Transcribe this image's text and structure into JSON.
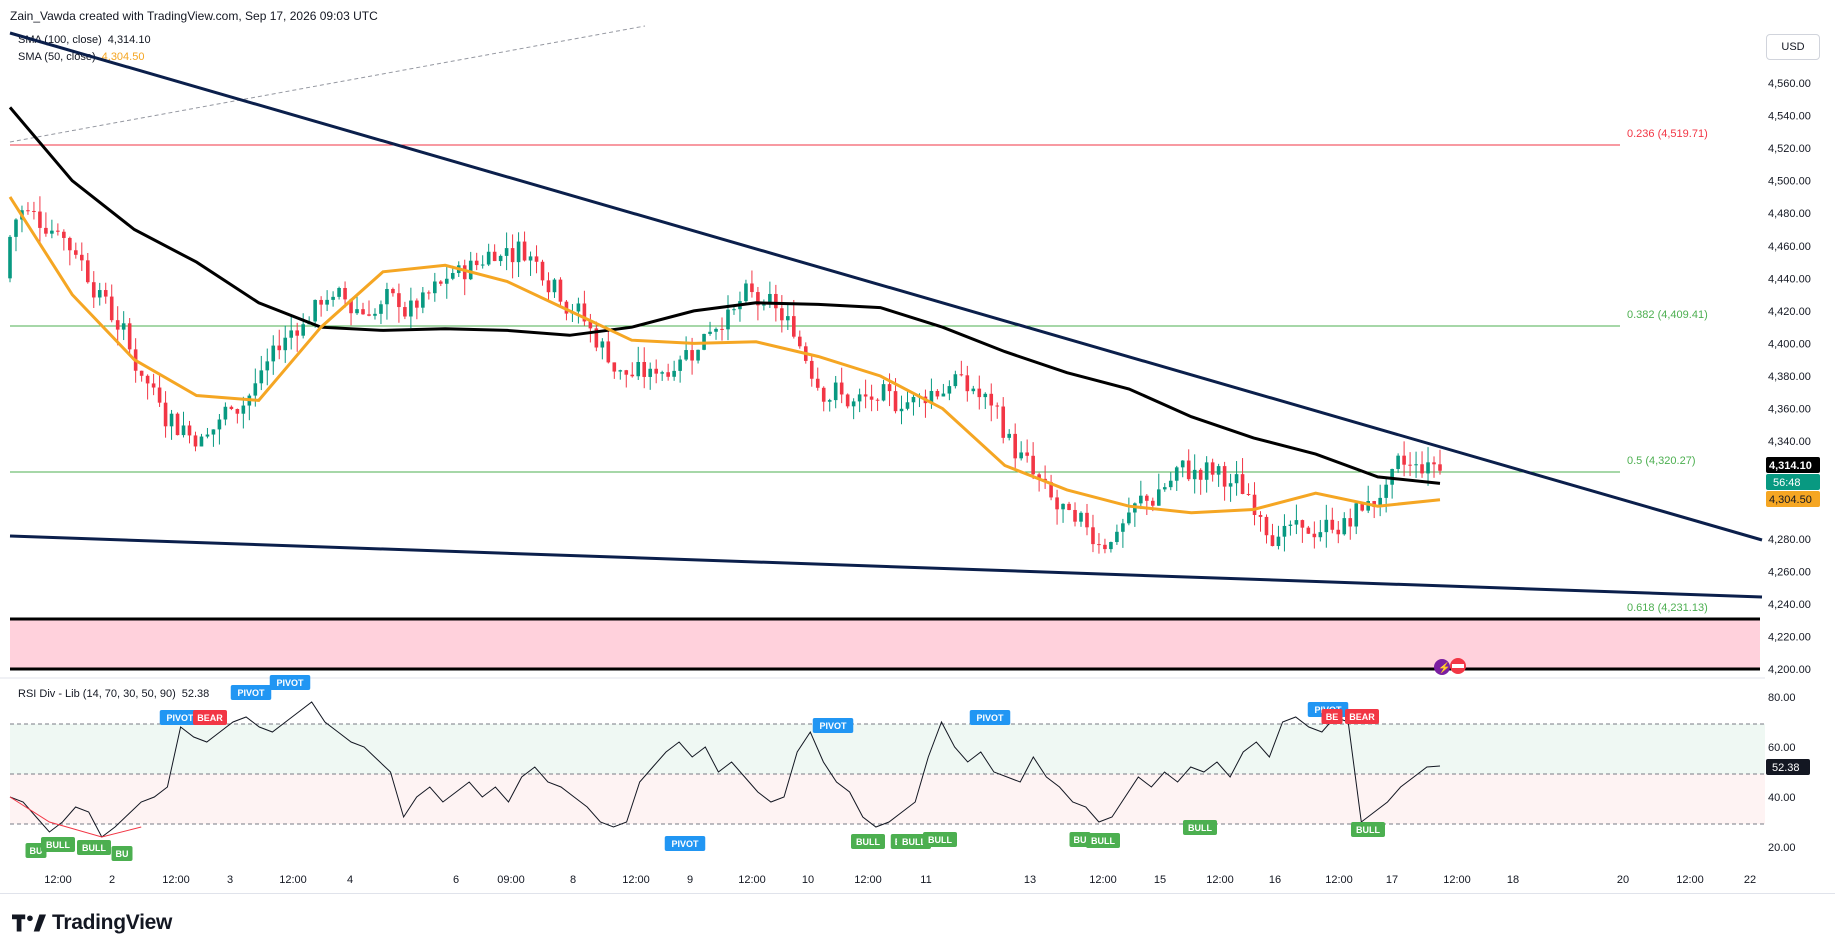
{
  "header": {
    "attribution": "Zain_Vawda created with TradingView.com, Sep 17, 2026 09:03 UTC"
  },
  "legend": [
    {
      "label": "SMA (100, close)",
      "value": "4,314.10",
      "color": "#000000"
    },
    {
      "label": "SMA (50, close)",
      "value": "4,304.50",
      "color": "#f5a623"
    }
  ],
  "currency_button": "USD",
  "price_axis_labels": [
    "4,560.00",
    "4,540.00",
    "4,520.00",
    "4,500.00",
    "4,480.00",
    "4,460.00",
    "4,440.00",
    "4,420.00",
    "4,400.00",
    "4,380.00",
    "4,360.00",
    "4,340.00",
    "4,280.00",
    "4,260.00",
    "4,240.00",
    "4,220.00",
    "4,200.00"
  ],
  "price_tags": {
    "last": "4,314.10",
    "countdown": "56:48",
    "sma50": "4,304.50"
  },
  "fib_labels": [
    {
      "text": "0.236 (4,519.71)",
      "color": "#f23645"
    },
    {
      "text": "0.382 (4,409.41)",
      "color": "#4caf50"
    },
    {
      "text": "0.5 (4,320.27)",
      "color": "#4caf50"
    },
    {
      "text": "0.618 (4,231.13)",
      "color": "#4caf50"
    }
  ],
  "rsi": {
    "title": "RSI Div - Lib (14, 70, 30, 50, 90)",
    "value": "52.38",
    "axis_labels": [
      "80.00",
      "60.00",
      "40.00",
      "20.00"
    ],
    "pivot_label": "PIVOT",
    "bear_label": "BEAR",
    "bull_label": "BULL",
    "bull_short_label": "BU",
    "bull_short_label2": "B",
    "bear_short_label": "BE"
  },
  "time_axis": [
    "12:00",
    "2",
    "12:00",
    "3",
    "12:00",
    "4",
    "6",
    "09:00",
    "8",
    "12:00",
    "9",
    "12:00",
    "10",
    "12:00",
    "11",
    "13",
    "12:00",
    "15",
    "12:00",
    "16",
    "12:00",
    "17",
    "12:00",
    "18",
    "20",
    "12:00",
    "22"
  ],
  "brand": {
    "name": "TradingView"
  },
  "colors": {
    "sma100": "#000000",
    "sma50": "#f5a623",
    "bull": "#089981",
    "bear": "#f23645",
    "trendline": "#0b1f4b",
    "zone": "#ffd1dc"
  },
  "chart_data": {
    "type": "candlestick",
    "title": "",
    "ylim": [
      4200,
      4570
    ],
    "price_levels": {
      "fib_0236": 4519.71,
      "fib_0382": 4409.41,
      "fib_05": 4320.27,
      "fib_0618": 4231.13
    },
    "last_price": 4314.1,
    "sma100_last": 4314.1,
    "sma50_last": 4304.5,
    "sma100_path": [
      4545,
      4500,
      4470,
      4450,
      4425,
      4410,
      4408,
      4409,
      4408,
      4405,
      4410,
      4420,
      4425,
      4424,
      4422,
      4410,
      4395,
      4382,
      4372,
      4355,
      4342,
      4332,
      4318,
      4314
    ],
    "sma50_path": [
      4490,
      4430,
      4390,
      4368,
      4365,
      4410,
      4444,
      4448,
      4438,
      4420,
      4402,
      4400,
      4401,
      4392,
      4380,
      4360,
      4325,
      4310,
      4300,
      4296,
      4298,
      4308,
      4300,
      4304
    ],
    "rsi_last": 52.38,
    "rsi_levels": {
      "upper": 70,
      "lower": 30,
      "mid": 50
    }
  }
}
